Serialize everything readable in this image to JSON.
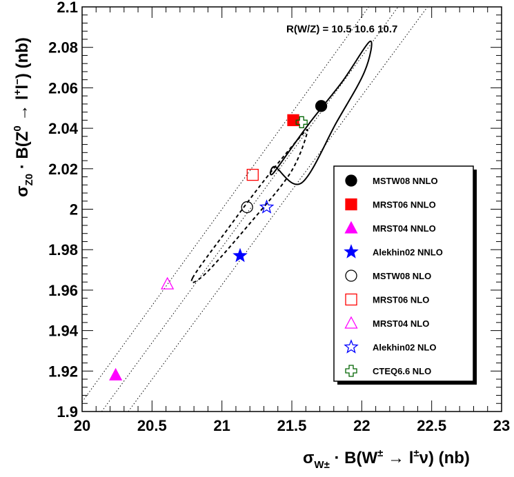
{
  "chart_data": {
    "type": "scatter",
    "xlabel": "σW± · B(W± → l±ν)  (nb)",
    "ylabel": "σZ0 · B(Z0 → l+l−)  (nb)",
    "xlim": [
      20,
      23
    ],
    "ylim": [
      1.9,
      2.1
    ],
    "x_ticks": [
      "20",
      "20.5",
      "21",
      "21.5",
      "22",
      "22.5",
      "23"
    ],
    "y_ticks": [
      "1.9",
      "1.92",
      "1.94",
      "1.96",
      "1.98",
      "2",
      "2.02",
      "2.04",
      "2.06",
      "2.08",
      "2.1"
    ],
    "annotation": "R(W/Z) = 10.5  10.6 10.7",
    "ratio_lines": [
      10.5,
      10.6,
      10.7
    ],
    "grid": false,
    "legend_position": "right",
    "series": [
      {
        "name": "MSTW08 NNLO",
        "x": 21.71,
        "y": 2.051,
        "marker": "circle-filled",
        "color": "#000000"
      },
      {
        "name": "MRST06 NNLO",
        "x": 21.51,
        "y": 2.044,
        "marker": "square-filled",
        "color": "#ff0000"
      },
      {
        "name": "MRST04 NNLO",
        "x": 20.24,
        "y": 1.918,
        "marker": "triangle-filled",
        "color": "#ff00ff"
      },
      {
        "name": "Alekhin02 NNLO",
        "x": 21.13,
        "y": 1.977,
        "marker": "star-filled",
        "color": "#0000ff"
      },
      {
        "name": "MSTW08 NLO",
        "x": 21.18,
        "y": 2.001,
        "marker": "circle-open",
        "color": "#000000"
      },
      {
        "name": "MRST06 NLO",
        "x": 21.22,
        "y": 2.017,
        "marker": "square-open",
        "color": "#ff0000"
      },
      {
        "name": "MRST04 NLO",
        "x": 20.61,
        "y": 1.963,
        "marker": "triangle-open",
        "color": "#ff00ff"
      },
      {
        "name": "Alekhin02 NLO",
        "x": 21.32,
        "y": 2.001,
        "marker": "star-open",
        "color": "#0000ff"
      },
      {
        "name": "CTEQ6.6 NLO",
        "x": 21.57,
        "y": 2.043,
        "marker": "cross-open",
        "color": "#006400"
      }
    ],
    "ellipses": [
      {
        "name": "",
        "style": "solid",
        "center": [
          21.71,
          2.051
        ],
        "points": [
          [
            21.37,
            2.018
          ],
          [
            21.62,
            2.042
          ],
          [
            21.86,
            2.063
          ],
          [
            22.06,
            2.083
          ],
          [
            22.02,
            2.068
          ],
          [
            21.82,
            2.043
          ],
          [
            21.57,
            2.013
          ],
          [
            21.38,
            2.021
          ]
        ]
      },
      {
        "name": "",
        "style": "dashed",
        "center": [
          21.18,
          2.001
        ],
        "points": [
          [
            20.79,
            1.966
          ],
          [
            21.05,
            1.991
          ],
          [
            21.3,
            2.014
          ],
          [
            21.55,
            2.035
          ],
          [
            21.61,
            2.038
          ],
          [
            21.49,
            2.018
          ],
          [
            21.2,
            1.993
          ],
          [
            20.88,
            1.968
          ]
        ]
      }
    ]
  }
}
